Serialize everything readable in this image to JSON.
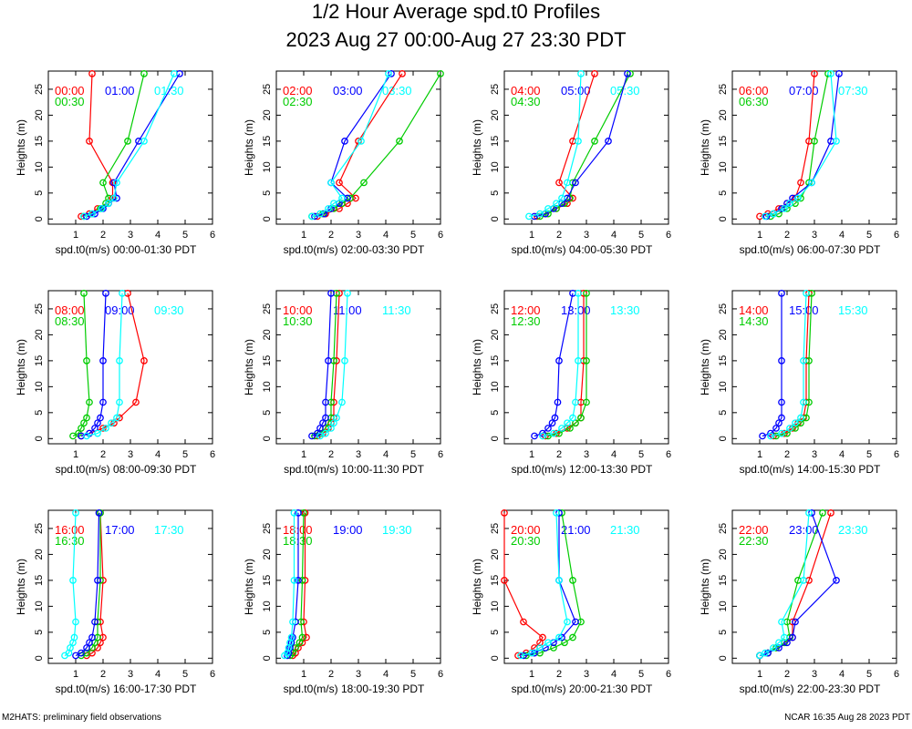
{
  "title": "1/2 Hour Average spd.t0 Profiles",
  "subtitle": "2023 Aug 27 00:00-Aug 27 23:30 PDT",
  "footer_left": "M2HATS: preliminary field observations",
  "footer_right": "NCAR 16:35 Aug 28 2023 PDT",
  "colors": {
    "c0": "#ff0000",
    "c1": "#00cc00",
    "c2": "#0000ff",
    "c3": "#00ffff"
  },
  "chart_data": {
    "type": "line",
    "ylabel": "Heights (m)",
    "heights": [
      0.5,
      1,
      2,
      3,
      4,
      7,
      15,
      28
    ],
    "xlim": [
      0,
      6
    ],
    "ylim": [
      -1,
      28.5
    ],
    "xticks": [
      1,
      2,
      3,
      4,
      5,
      6
    ],
    "yticks": [
      0,
      5,
      10,
      15,
      20,
      25
    ],
    "panels": [
      {
        "xlabel": "spd.t0(m/s) 00:00-01:30 PDT",
        "series": [
          {
            "name": "00:00",
            "values": [
              1.2,
              1.5,
              1.8,
              2.2,
              2.35,
              2.35,
              1.5,
              1.6
            ]
          },
          {
            "name": "00:30",
            "values": [
              1.3,
              1.6,
              1.9,
              2.1,
              2.2,
              2.0,
              2.9,
              3.5
            ]
          },
          {
            "name": "01:00",
            "values": [
              1.4,
              1.7,
              2.0,
              2.2,
              2.5,
              2.4,
              3.3,
              4.8
            ]
          },
          {
            "name": "01:30",
            "values": [
              1.3,
              1.6,
              1.95,
              2.2,
              2.4,
              2.5,
              3.5,
              4.6
            ]
          }
        ]
      },
      {
        "xlabel": "spd.t0(m/s) 02:00-03:30 PDT",
        "series": [
          {
            "name": "02:00",
            "values": [
              1.5,
              1.8,
              2.3,
              2.6,
              2.9,
              2.3,
              3.0,
              4.6
            ]
          },
          {
            "name": "02:30",
            "values": [
              1.3,
              1.7,
              2.1,
              2.4,
              2.7,
              3.2,
              4.5,
              6.0
            ]
          },
          {
            "name": "03:00",
            "values": [
              1.4,
              1.75,
              2.0,
              2.3,
              2.6,
              2.0,
              2.5,
              4.2
            ]
          },
          {
            "name": "03:30",
            "values": [
              1.3,
              1.6,
              1.9,
              2.1,
              2.4,
              2.0,
              3.1,
              4.1
            ]
          }
        ]
      },
      {
        "xlabel": "spd.t0(m/s) 04:00-05:30 PDT",
        "series": [
          {
            "name": "04:00",
            "values": [
              1.2,
              1.5,
              1.9,
              2.3,
              2.5,
              2.0,
              2.5,
              3.3
            ]
          },
          {
            "name": "04:30",
            "values": [
              1.3,
              1.6,
              1.9,
              2.2,
              2.4,
              2.5,
              3.3,
              4.6
            ]
          },
          {
            "name": "05:00",
            "values": [
              1.1,
              1.5,
              1.8,
              2.1,
              2.3,
              2.6,
              3.8,
              4.5
            ]
          },
          {
            "name": "05:30",
            "values": [
              0.9,
              1.3,
              1.6,
              1.9,
              2.1,
              2.3,
              2.7,
              2.8
            ]
          }
        ]
      },
      {
        "xlabel": "spd.t0(m/s) 06:00-07:30 PDT",
        "series": [
          {
            "name": "06:00",
            "values": [
              1.0,
              1.3,
              1.7,
              2.0,
              2.3,
              2.5,
              2.8,
              3.0
            ]
          },
          {
            "name": "06:30",
            "values": [
              1.4,
              1.7,
              2.0,
              2.3,
              2.5,
              2.8,
              3.0,
              3.5
            ]
          },
          {
            "name": "07:00",
            "values": [
              1.25,
              1.5,
              1.8,
              2.0,
              2.2,
              2.9,
              3.6,
              3.9
            ]
          },
          {
            "name": "07:30",
            "values": [
              1.2,
              1.5,
              1.9,
              2.1,
              2.4,
              2.9,
              3.8,
              3.6
            ]
          }
        ]
      },
      {
        "xlabel": "spd.t0(m/s) 08:00-09:30 PDT",
        "series": [
          {
            "name": "08:00",
            "values": [
              1.2,
              1.5,
              2.0,
              2.4,
              2.6,
              3.2,
              3.5,
              2.9
            ]
          },
          {
            "name": "08:30",
            "values": [
              0.9,
              1.1,
              1.2,
              1.3,
              1.4,
              1.5,
              1.4,
              1.3
            ]
          },
          {
            "name": "09:00",
            "values": [
              1.2,
              1.5,
              1.7,
              1.8,
              1.9,
              2.0,
              2.0,
              2.1
            ]
          },
          {
            "name": "09:30",
            "values": [
              1.4,
              1.8,
              2.1,
              2.3,
              2.5,
              2.6,
              2.6,
              2.7
            ]
          }
        ]
      },
      {
        "xlabel": "spd.t0(m/s) 10:00-11:30 PDT",
        "series": [
          {
            "name": "10:00",
            "values": [
              1.5,
              1.7,
              1.9,
              2.0,
              2.1,
              2.1,
              2.2,
              2.3
            ]
          },
          {
            "name": "10:30",
            "values": [
              1.4,
              1.6,
              1.8,
              1.9,
              2.0,
              2.0,
              2.1,
              2.2
            ]
          },
          {
            "name": "11:00",
            "values": [
              1.3,
              1.5,
              1.6,
              1.7,
              1.8,
              1.8,
              1.9,
              2.0
            ]
          },
          {
            "name": "11:30",
            "values": [
              1.6,
              1.8,
              2.0,
              2.1,
              2.2,
              2.4,
              2.5,
              2.6
            ]
          }
        ]
      },
      {
        "xlabel": "spd.t0(m/s) 12:00-13:30 PDT",
        "series": [
          {
            "name": "12:00",
            "values": [
              1.5,
              1.9,
              2.3,
              2.6,
              2.8,
              2.8,
              2.9,
              2.9
            ]
          },
          {
            "name": "12:30",
            "values": [
              1.6,
              2.0,
              2.4,
              2.6,
              2.8,
              3.0,
              3.0,
              3.0
            ]
          },
          {
            "name": "13:00",
            "values": [
              1.1,
              1.4,
              1.6,
              1.75,
              1.85,
              1.95,
              2.0,
              2.5
            ]
          },
          {
            "name": "13:30",
            "values": [
              1.4,
              1.8,
              2.1,
              2.3,
              2.5,
              2.6,
              2.7,
              2.7
            ]
          }
        ]
      },
      {
        "xlabel": "spd.t0(m/s) 14:00-15:30 PDT",
        "series": [
          {
            "name": "14:00",
            "values": [
              1.5,
              1.9,
              2.2,
              2.4,
              2.6,
              2.7,
              2.7,
              2.8
            ]
          },
          {
            "name": "14:30",
            "values": [
              1.6,
              2.0,
              2.3,
              2.5,
              2.7,
              2.8,
              2.8,
              2.9
            ]
          },
          {
            "name": "15:00",
            "values": [
              1.1,
              1.4,
              1.6,
              1.7,
              1.8,
              1.8,
              1.8,
              1.8
            ]
          },
          {
            "name": "15:30",
            "values": [
              1.4,
              1.8,
              2.1,
              2.3,
              2.5,
              2.6,
              2.6,
              2.7
            ]
          }
        ]
      },
      {
        "xlabel": "spd.t0(m/s) 16:00-17:30 PDT",
        "series": [
          {
            "name": "16:00",
            "values": [
              1.4,
              1.6,
              1.8,
              1.9,
              2.0,
              1.9,
              2.0,
              1.9
            ]
          },
          {
            "name": "16:30",
            "values": [
              1.2,
              1.4,
              1.6,
              1.7,
              1.8,
              1.8,
              1.9,
              1.9
            ]
          },
          {
            "name": "17:00",
            "values": [
              1.0,
              1.2,
              1.4,
              1.5,
              1.6,
              1.7,
              1.8,
              1.85
            ]
          },
          {
            "name": "17:30",
            "values": [
              0.6,
              0.75,
              0.8,
              0.9,
              0.95,
              1.0,
              0.9,
              1.0
            ]
          }
        ]
      },
      {
        "xlabel": "spd.t0(m/s) 18:00-19:30 PDT",
        "series": [
          {
            "name": "18:00",
            "values": [
              0.6,
              0.7,
              0.8,
              0.95,
              1.1,
              1.0,
              1.05,
              1.05
            ]
          },
          {
            "name": "18:30",
            "values": [
              0.5,
              0.6,
              0.7,
              0.85,
              0.95,
              0.9,
              0.95,
              1.0
            ]
          },
          {
            "name": "19:00",
            "values": [
              0.4,
              0.45,
              0.5,
              0.55,
              0.6,
              0.7,
              0.8,
              0.8
            ]
          },
          {
            "name": "19:30",
            "values": [
              0.3,
              0.4,
              0.45,
              0.5,
              0.55,
              0.6,
              0.65,
              0.65
            ]
          }
        ]
      },
      {
        "xlabel": "spd.t0(m/s) 20:00-21:30 PDT",
        "series": [
          {
            "name": "20:00",
            "values": [
              0.5,
              0.8,
              1.1,
              1.3,
              1.4,
              0.7,
              0.0,
              0.0
            ]
          },
          {
            "name": "20:30",
            "values": [
              0.8,
              1.3,
              1.8,
              2.2,
              2.5,
              2.8,
              2.5,
              2.1
            ]
          },
          {
            "name": "21:00",
            "values": [
              0.7,
              1.1,
              1.5,
              1.8,
              2.1,
              2.6,
              2.0,
              2.0
            ]
          },
          {
            "name": "21:30",
            "values": [
              0.6,
              1.0,
              1.3,
              1.6,
              2.0,
              2.3,
              2.0,
              1.9
            ]
          }
        ]
      },
      {
        "xlabel": "spd.t0(m/s) 22:00-23:30 PDT",
        "series": [
          {
            "name": "22:00",
            "values": [
              1.0,
              1.3,
              1.6,
              1.9,
              2.2,
              2.2,
              2.8,
              3.6
            ]
          },
          {
            "name": "22:30",
            "values": [
              1.0,
              1.3,
              1.6,
              1.9,
              2.1,
              2.0,
              2.4,
              3.3
            ]
          },
          {
            "name": "23:00",
            "values": [
              1.0,
              1.3,
              1.7,
              2.0,
              2.2,
              2.3,
              3.8,
              2.9
            ]
          },
          {
            "name": "23:30",
            "values": [
              1.0,
              1.2,
              1.5,
              1.7,
              1.9,
              1.8,
              2.6,
              2.8
            ]
          }
        ]
      }
    ]
  }
}
